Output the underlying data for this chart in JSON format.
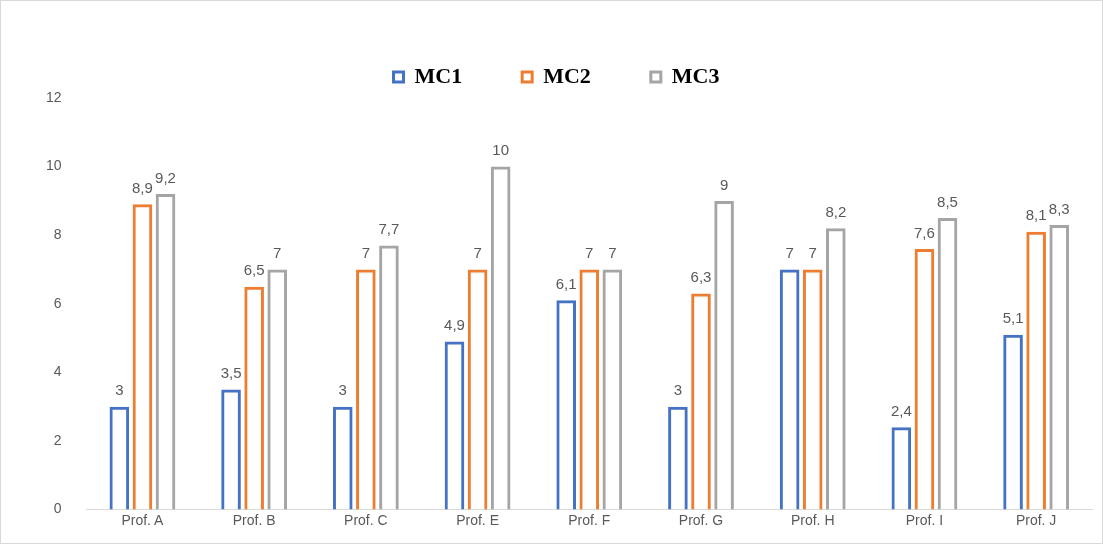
{
  "chart_data": {
    "type": "bar",
    "categories": [
      "Prof. A",
      "Prof. B",
      "Prof. C",
      "Prof. E",
      "Prof. F",
      "Prof. G",
      "Prof. H",
      "Prof. I",
      "Prof. J"
    ],
    "series": [
      {
        "name": "MC1",
        "color": "#4472c4",
        "values": [
          3,
          3.5,
          3,
          4.9,
          6.1,
          3,
          7,
          2.4,
          5.1
        ],
        "value_labels": [
          "3",
          "3,5",
          "3",
          "4,9",
          "6,1",
          "3",
          "7",
          "2,4",
          "5,1"
        ]
      },
      {
        "name": "MC2",
        "color": "#ed7d31",
        "values": [
          8.9,
          6.5,
          7,
          7,
          7,
          6.3,
          7,
          7.6,
          8.1
        ],
        "value_labels": [
          "8,9",
          "6,5",
          "7",
          "7",
          "7",
          "6,3",
          "7",
          "7,6",
          "8,1"
        ]
      },
      {
        "name": "MC3",
        "color": "#a5a5a5",
        "values": [
          9.2,
          7,
          7.7,
          10,
          7,
          9,
          8.2,
          8.5,
          8.3
        ],
        "value_labels": [
          "9,2",
          "7",
          "7,7",
          "10",
          "7",
          "9",
          "8,2",
          "8,5",
          "8,3"
        ]
      }
    ],
    "ylim": [
      0,
      12
    ],
    "yticks": [
      0,
      2,
      4,
      6,
      8,
      10,
      12
    ],
    "grid": false,
    "legend": "top"
  }
}
